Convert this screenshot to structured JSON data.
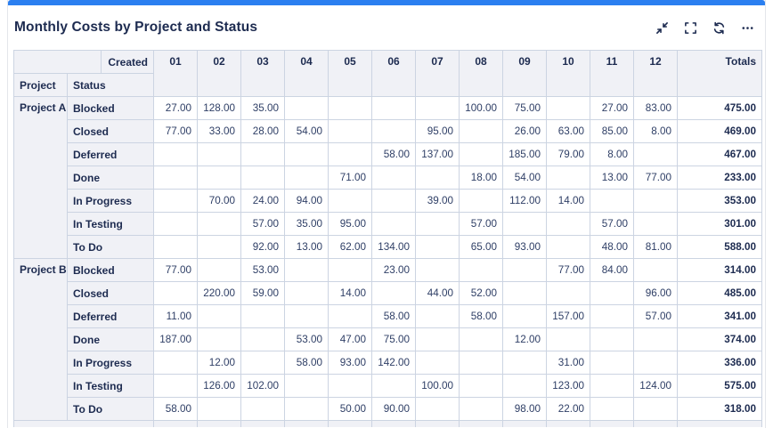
{
  "accent_color": "#2b7ff0",
  "panel": {
    "title": "Monthly Costs by Project and Status",
    "controls": {
      "collapse": "collapse",
      "fullscreen": "fullscreen",
      "refresh": "refresh",
      "more": "more"
    }
  },
  "pivot": {
    "column_dimension_label": "Created",
    "row_dimension_labels": {
      "project": "Project",
      "status": "Status"
    },
    "months": [
      "01",
      "02",
      "03",
      "04",
      "05",
      "06",
      "07",
      "08",
      "09",
      "10",
      "11",
      "12"
    ],
    "totals_label": "Totals",
    "groups": [
      {
        "project": "Project A",
        "rows": [
          {
            "status": "Blocked",
            "values": [
              "27.00",
              "128.00",
              "35.00",
              "",
              "",
              "",
              "",
              "100.00",
              "75.00",
              "",
              "27.00",
              "83.00"
            ],
            "total": "475.00"
          },
          {
            "status": "Closed",
            "values": [
              "77.00",
              "33.00",
              "28.00",
              "54.00",
              "",
              "",
              "95.00",
              "",
              "26.00",
              "63.00",
              "85.00",
              "8.00"
            ],
            "total": "469.00"
          },
          {
            "status": "Deferred",
            "values": [
              "",
              "",
              "",
              "",
              "",
              "58.00",
              "137.00",
              "",
              "185.00",
              "79.00",
              "8.00",
              ""
            ],
            "total": "467.00"
          },
          {
            "status": "Done",
            "values": [
              "",
              "",
              "",
              "",
              "71.00",
              "",
              "",
              "18.00",
              "54.00",
              "",
              "13.00",
              "77.00"
            ],
            "total": "233.00"
          },
          {
            "status": "In Progress",
            "values": [
              "",
              "70.00",
              "24.00",
              "94.00",
              "",
              "",
              "39.00",
              "",
              "112.00",
              "14.00",
              "",
              ""
            ],
            "total": "353.00"
          },
          {
            "status": "In Testing",
            "values": [
              "",
              "",
              "57.00",
              "35.00",
              "95.00",
              "",
              "",
              "57.00",
              "",
              "",
              "57.00",
              ""
            ],
            "total": "301.00"
          },
          {
            "status": "To Do",
            "values": [
              "",
              "",
              "92.00",
              "13.00",
              "62.00",
              "134.00",
              "",
              "65.00",
              "93.00",
              "",
              "48.00",
              "81.00"
            ],
            "total": "588.00"
          }
        ]
      },
      {
        "project": "Project B",
        "rows": [
          {
            "status": "Blocked",
            "values": [
              "77.00",
              "",
              "53.00",
              "",
              "",
              "23.00",
              "",
              "",
              "",
              "77.00",
              "84.00",
              ""
            ],
            "total": "314.00"
          },
          {
            "status": "Closed",
            "values": [
              "",
              "220.00",
              "59.00",
              "",
              "14.00",
              "",
              "44.00",
              "52.00",
              "",
              "",
              "",
              "96.00"
            ],
            "total": "485.00"
          },
          {
            "status": "Deferred",
            "values": [
              "11.00",
              "",
              "",
              "",
              "",
              "58.00",
              "",
              "58.00",
              "",
              "157.00",
              "",
              "57.00"
            ],
            "total": "341.00"
          },
          {
            "status": "Done",
            "values": [
              "187.00",
              "",
              "",
              "53.00",
              "47.00",
              "75.00",
              "",
              "",
              "12.00",
              "",
              "",
              ""
            ],
            "total": "374.00"
          },
          {
            "status": "In Progress",
            "values": [
              "",
              "12.00",
              "",
              "58.00",
              "93.00",
              "142.00",
              "",
              "",
              "",
              "31.00",
              "",
              ""
            ],
            "total": "336.00"
          },
          {
            "status": "In Testing",
            "values": [
              "",
              "126.00",
              "102.00",
              "",
              "",
              "",
              "100.00",
              "",
              "",
              "123.00",
              "",
              "124.00"
            ],
            "total": "575.00"
          },
          {
            "status": "To Do",
            "values": [
              "58.00",
              "",
              "",
              "",
              "50.00",
              "90.00",
              "",
              "",
              "98.00",
              "22.00",
              "",
              ""
            ],
            "total": "318.00"
          }
        ]
      }
    ]
  }
}
